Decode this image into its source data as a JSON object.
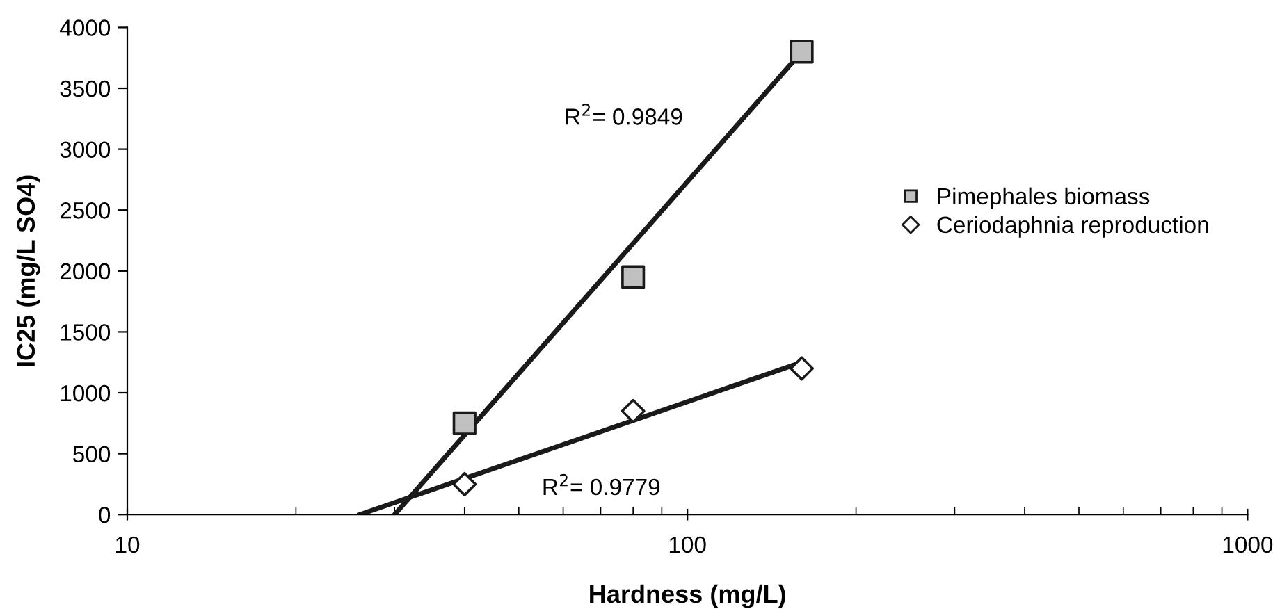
{
  "chart_data": {
    "type": "scatter",
    "xlabel": "Hardness (mg/L)",
    "ylabel": "IC25 (mg/L SO4)",
    "log": "x",
    "xlim": [
      10,
      1000
    ],
    "xticks": [
      10,
      100,
      1000
    ],
    "ylim": [
      0,
      4000
    ],
    "yticks": [
      0,
      500,
      1000,
      1500,
      2000,
      2500,
      3000,
      3500,
      4000
    ],
    "grid": false,
    "legend": "right",
    "series": [
      {
        "name": "Pimephales biomass",
        "marker": "square",
        "color": "#c0c0c0",
        "x": [
          40,
          80,
          160
        ],
        "values": [
          750,
          1950,
          3800
        ]
      },
      {
        "name": "Ceriodaphnia reproduction",
        "marker": "diamond",
        "color": "#ffffff",
        "x": [
          40,
          80,
          160
        ],
        "values": [
          250,
          850,
          1200
        ]
      },
      {
        "type": "line",
        "color": "#1a1a1a",
        "x": [
          30,
          160
        ],
        "values": [
          0,
          3800
        ]
      },
      {
        "type": "line",
        "color": "#1a1a1a",
        "x": [
          26,
          160
        ],
        "values": [
          0,
          1250
        ]
      }
    ],
    "annotations": [
      "R$^{2}$= 0.9849",
      "R$^{2}$= 0.9779"
    ]
  }
}
